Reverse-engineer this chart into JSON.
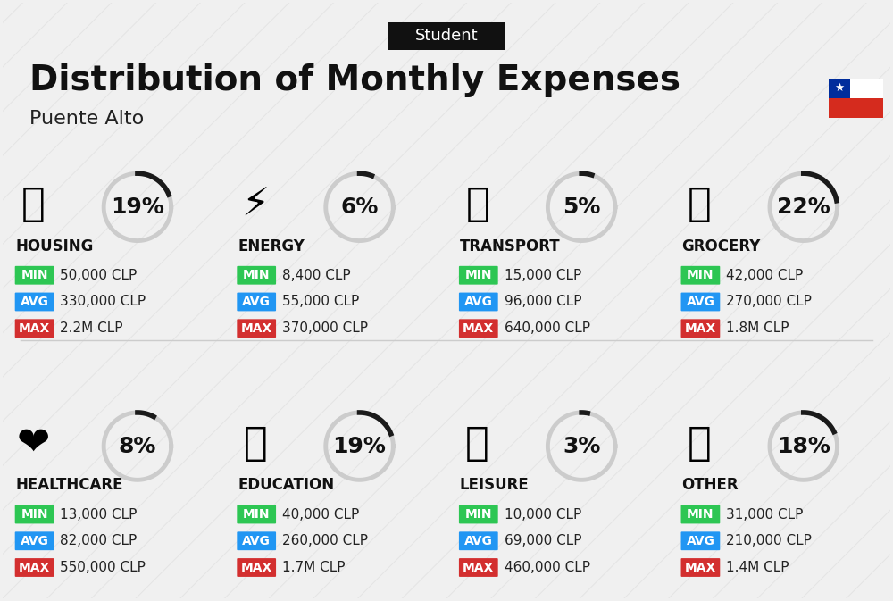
{
  "title": "Distribution of Monthly Expenses",
  "subtitle": "Puente Alto",
  "header_label": "Student",
  "background_color": "#f0f0f0",
  "categories": [
    {
      "name": "HOUSING",
      "icon": "🏢",
      "pct": 19,
      "min": "50,000 CLP",
      "avg": "330,000 CLP",
      "max": "2.2M CLP",
      "row": 0,
      "col": 0
    },
    {
      "name": "ENERGY",
      "icon": "⚡",
      "pct": 6,
      "min": "8,400 CLP",
      "avg": "55,000 CLP",
      "max": "370,000 CLP",
      "row": 0,
      "col": 1
    },
    {
      "name": "TRANSPORT",
      "icon": "🚌",
      "pct": 5,
      "min": "15,000 CLP",
      "avg": "96,000 CLP",
      "max": "640,000 CLP",
      "row": 0,
      "col": 2
    },
    {
      "name": "GROCERY",
      "icon": "🛒",
      "pct": 22,
      "min": "42,000 CLP",
      "avg": "270,000 CLP",
      "max": "1.8M CLP",
      "row": 0,
      "col": 3
    },
    {
      "name": "HEALTHCARE",
      "icon": "❤️",
      "pct": 8,
      "min": "13,000 CLP",
      "avg": "82,000 CLP",
      "max": "550,000 CLP",
      "row": 1,
      "col": 0
    },
    {
      "name": "EDUCATION",
      "icon": "🎓",
      "pct": 19,
      "min": "40,000 CLP",
      "avg": "260,000 CLP",
      "max": "1.7M CLP",
      "row": 1,
      "col": 1
    },
    {
      "name": "LEISURE",
      "icon": "🛍️",
      "pct": 3,
      "min": "10,000 CLP",
      "avg": "69,000 CLP",
      "max": "460,000 CLP",
      "row": 1,
      "col": 2
    },
    {
      "name": "OTHER",
      "icon": "💰",
      "pct": 18,
      "min": "31,000 CLP",
      "avg": "210,000 CLP",
      "max": "1.4M CLP",
      "row": 1,
      "col": 3
    }
  ],
  "min_color": "#2dc653",
  "avg_color": "#2196f3",
  "max_color": "#d32f2f",
  "label_text_color": "#ffffff",
  "donut_bg_color": "#cccccc",
  "donut_fg_color": "#1a1a1a",
  "title_fontsize": 28,
  "subtitle_fontsize": 16,
  "header_fontsize": 13,
  "cat_name_fontsize": 12,
  "pct_fontsize": 18,
  "val_fontsize": 11
}
